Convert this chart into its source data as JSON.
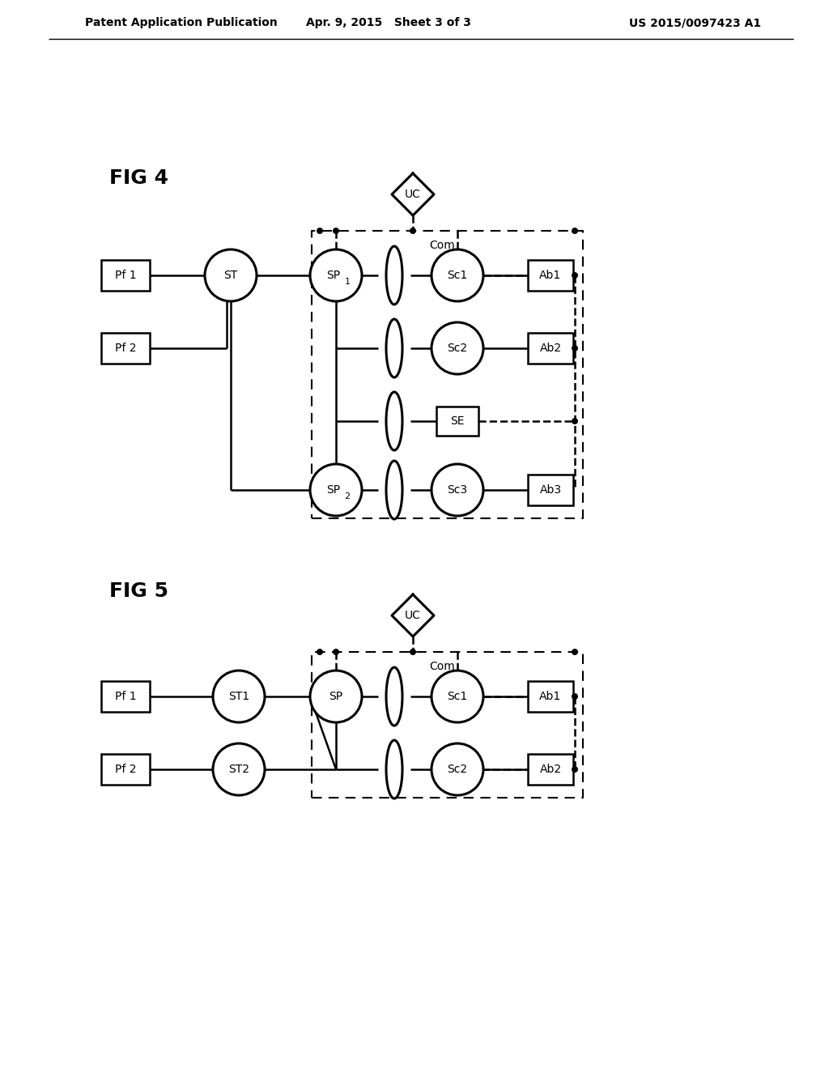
{
  "header_left": "Patent Application Publication",
  "header_center": "Apr. 9, 2015   Sheet 3 of 3",
  "header_right": "US 2015/0097423 A1",
  "fig4_label": "FIG 4",
  "fig5_label": "FIG 5",
  "bg_color": "#ffffff"
}
